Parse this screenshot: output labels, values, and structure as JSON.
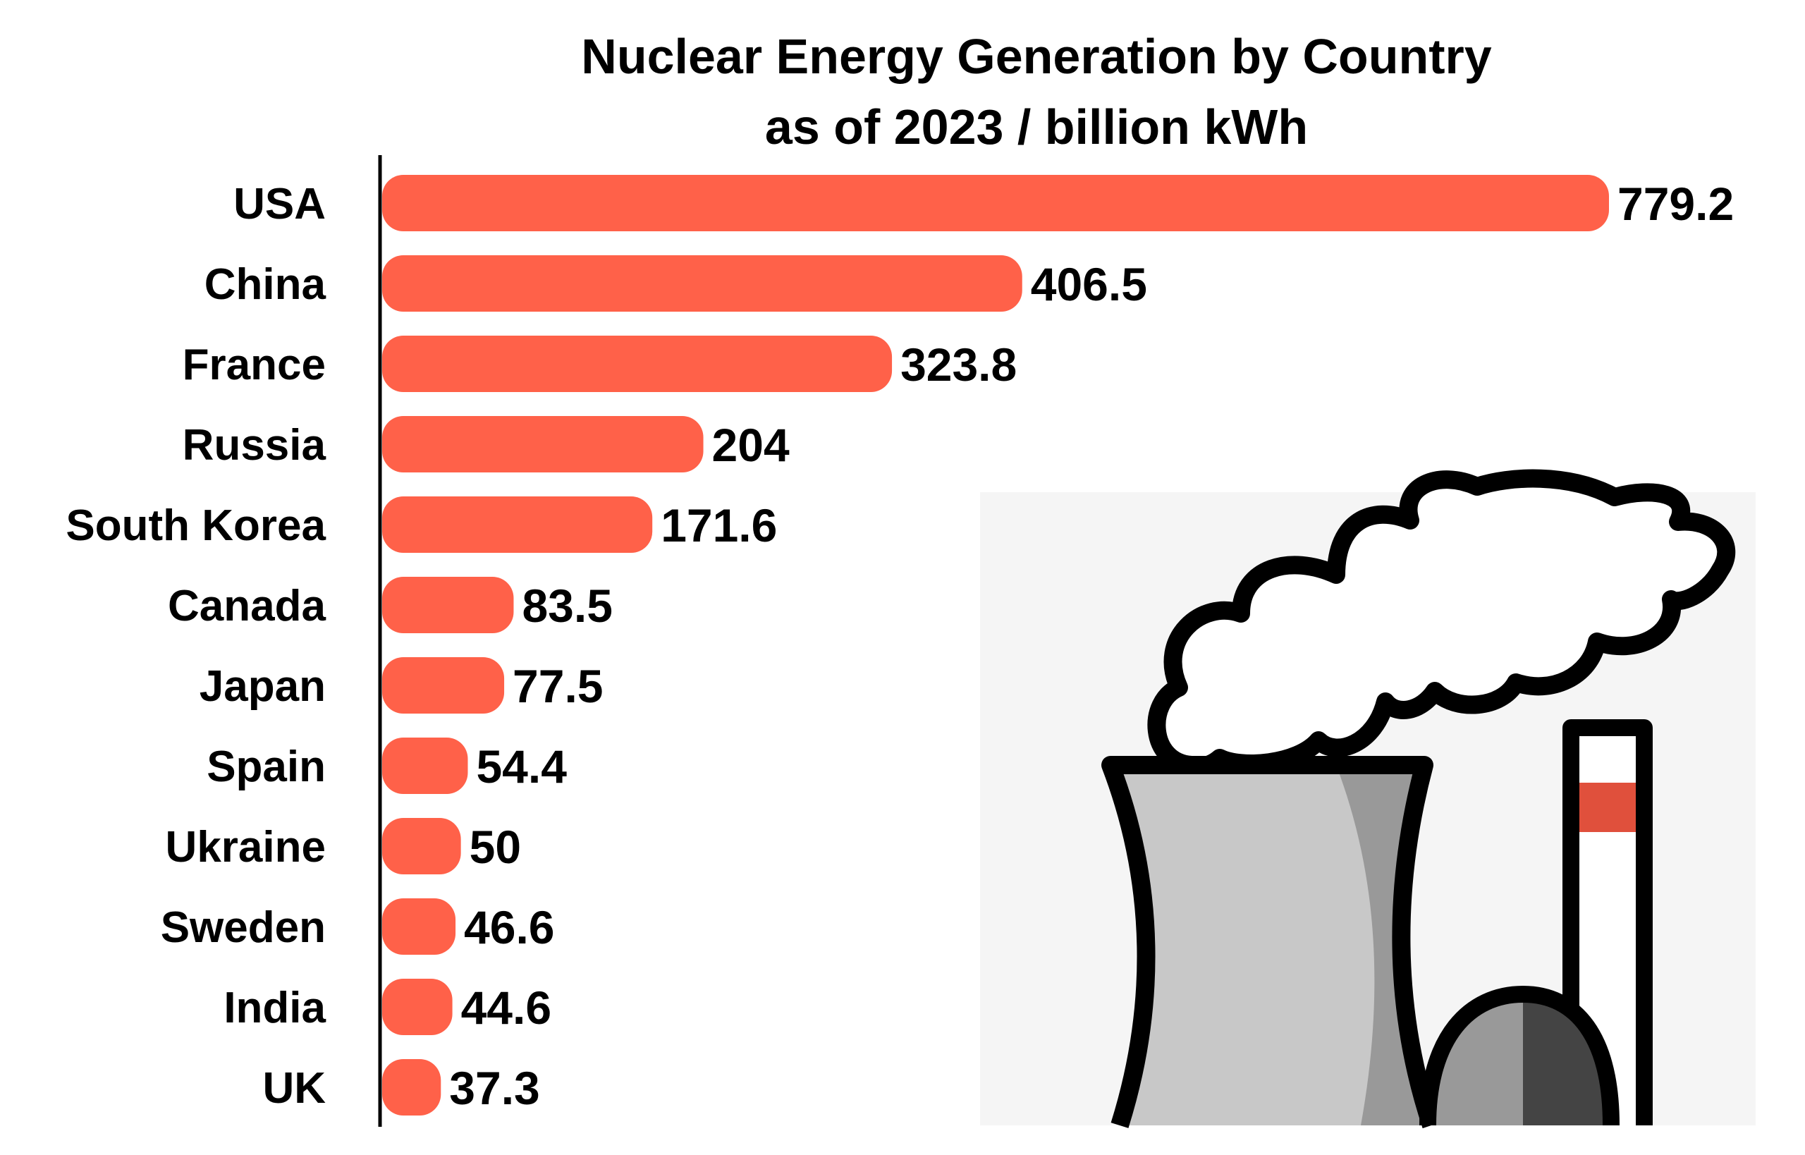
{
  "chart_data": {
    "type": "bar",
    "orientation": "horizontal",
    "title": "Nuclear Energy Generation by Country",
    "subtitle": "as of 2023 / billion kWh",
    "categories": [
      "USA",
      "China",
      "France",
      "Russia",
      "South Korea",
      "Canada",
      "Japan",
      "Spain",
      "Ukraine",
      "Sweden",
      "India",
      "UK"
    ],
    "values": [
      779.2,
      406.5,
      323.8,
      204,
      171.6,
      83.5,
      77.5,
      54.4,
      50,
      46.6,
      44.6,
      37.3
    ],
    "value_labels": [
      "779.2",
      "406.5",
      "323.8",
      "204",
      "171.6",
      "83.5",
      "77.5",
      "54.4",
      "50",
      "46.6",
      "44.6",
      "37.3"
    ],
    "xlim": [
      0,
      779.2
    ],
    "grid": false,
    "legend": "none",
    "bar_color": "#ff6149"
  },
  "illustration": {
    "icon": "nuclear-power-plant-icon",
    "colors": {
      "background": "#f5f5f5",
      "outline": "#000000",
      "cloud": "#ffffff",
      "tower": "#c8c8c8",
      "tower_shade": "#999999",
      "dome": "#999999",
      "dome_shade": "#444444",
      "chimney_stripe": "#e0503c"
    }
  }
}
